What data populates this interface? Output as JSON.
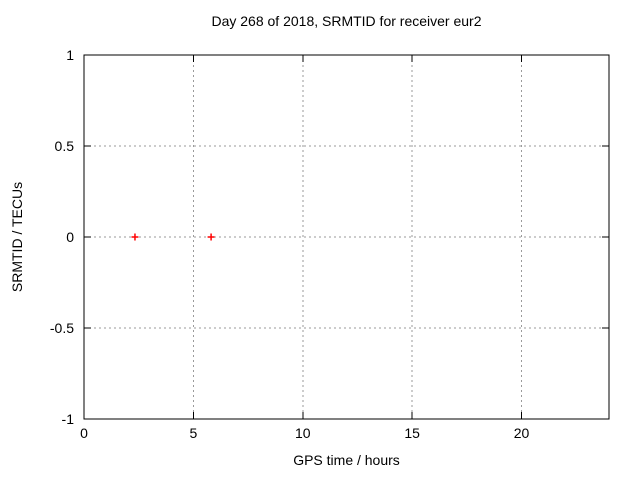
{
  "chart_data": {
    "type": "scatter",
    "title": "Day 268 of 2018, SRMTID for receiver eur2",
    "xlabel": "GPS time / hours",
    "ylabel": "SRMTID / TECUs",
    "xlim": [
      0,
      24
    ],
    "ylim": [
      -1,
      1
    ],
    "xticks": [
      0,
      5,
      10,
      15,
      20
    ],
    "yticks": [
      -1,
      -0.5,
      0,
      0.5,
      1
    ],
    "grid": true,
    "legend": "none",
    "series": [
      {
        "name": "SRMTID",
        "marker": "plus",
        "color": "#ff0000",
        "points": [
          {
            "x": 2.33,
            "y": 0
          },
          {
            "x": 5.81,
            "y": 0
          }
        ]
      }
    ]
  },
  "colors": {
    "background": "#ffffff",
    "border": "#000000",
    "grid": "#9a9a9a",
    "marker": "#ff0000",
    "text": "#000000"
  }
}
